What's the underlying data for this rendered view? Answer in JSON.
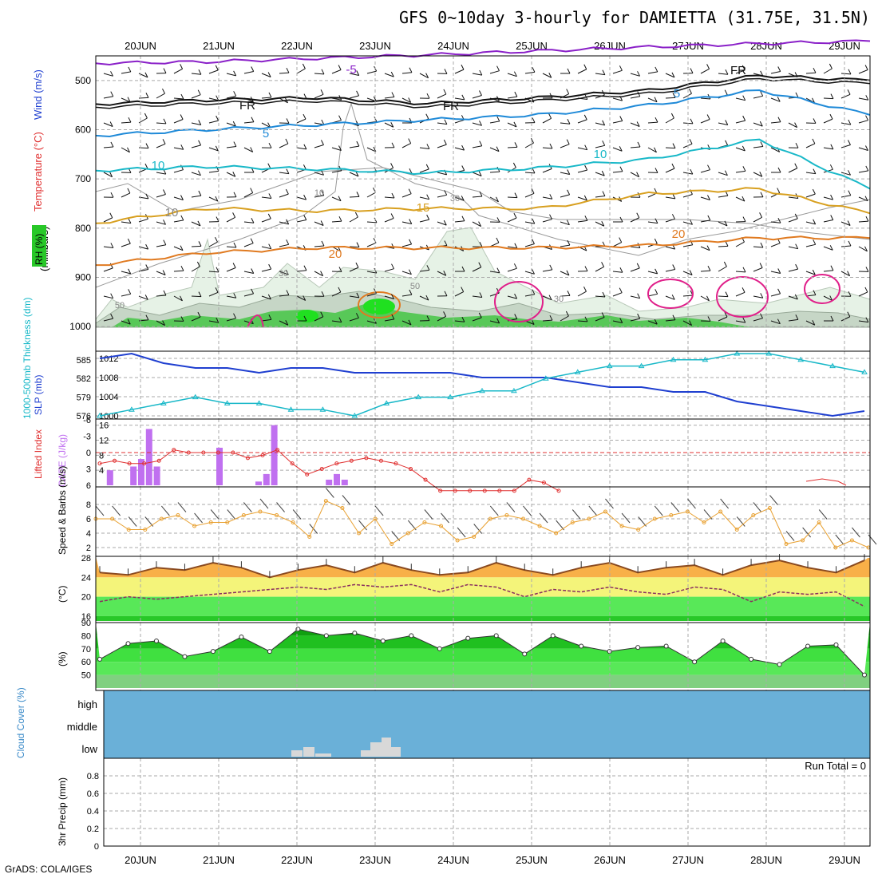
{
  "title": "GFS 0~10day 3-hourly for DAMIETTA (31.75E, 31.5N)",
  "footer": "GrADS: COLA/IGES",
  "run_total": "Run Total = 0",
  "dates": [
    "20JUN",
    "21JUN",
    "22JUN",
    "23JUN",
    "24JUN",
    "25JUN",
    "26JUN",
    "27JUN",
    "28JUN",
    "29JUN"
  ],
  "colors": {
    "slp": "#1f3fd0",
    "thickness": "#18b8c8",
    "lifted": "#e03030",
    "cape": "#c070f0",
    "wind10m": "#e8a030",
    "temp": "#8a4a20",
    "dewpt": "#8a3060",
    "rh_fill": "#28c828",
    "cloud": "#6ab0d8",
    "pink": "#e0208a",
    "orange": "#e07a20",
    "gold": "#d8a020",
    "teal": "#18b8c8",
    "blue": "#1f8ad8",
    "purple": "#8a20c8"
  },
  "chart_data": [
    {
      "panel": "pressure-cross-section",
      "type": "line",
      "labels": [
        "Temperature (°C)",
        "Wind (m/s)",
        "RH (%)",
        "(millibars)"
      ],
      "yticks": [
        500,
        600,
        700,
        800,
        900,
        1000
      ],
      "ylim": [
        450,
        1050
      ],
      "contour_labels": [
        "-5",
        "FR",
        "FR",
        "FR",
        "5",
        "5",
        "10",
        "10",
        "15",
        "20",
        "20",
        "10",
        "10",
        "30",
        "30",
        "30",
        "50",
        "50"
      ],
      "isotherms": [
        {
          "name": "-5",
          "values": [
            465,
            462,
            455,
            448,
            440,
            432,
            425,
            420
          ]
        },
        {
          "name": "FR",
          "values": [
            548,
            540,
            535,
            547,
            535,
            520,
            490,
            500
          ]
        },
        {
          "name": "5",
          "values": [
            612,
            600,
            590,
            580,
            570,
            550,
            520,
            570
          ]
        },
        {
          "name": "10",
          "values": [
            683,
            675,
            680,
            688,
            678,
            660,
            620,
            720
          ]
        },
        {
          "name": "15",
          "values": [
            790,
            760,
            765,
            760,
            760,
            730,
            720,
            770
          ]
        },
        {
          "name": "20",
          "values": [
            875,
            850,
            840,
            840,
            840,
            835,
            820,
            820
          ]
        }
      ]
    },
    {
      "panel": "slp-thickness",
      "type": "line",
      "ylabel": "SLP (mb)",
      "ylabel2": "1000-500mb Thickness (dm)",
      "yticks_slp": [
        1000,
        1004,
        1008,
        1012
      ],
      "yticks_thk": [
        576,
        579,
        582,
        585
      ],
      "slp": {
        "name": "SLP",
        "values": [
          1012,
          1013,
          1011,
          1010,
          1010,
          1009,
          1010,
          1010,
          1009,
          1009,
          1009,
          1009,
          1008,
          1008,
          1008,
          1007,
          1006,
          1006,
          1005,
          1005,
          1003,
          1002,
          1001,
          1000,
          1001
        ]
      },
      "thickness": {
        "name": "1000-500mb Thickness",
        "values": [
          576,
          577,
          578,
          579,
          578,
          578,
          577,
          577,
          576,
          578,
          579,
          579,
          580,
          580,
          582,
          583,
          584,
          584,
          585,
          585,
          586,
          586,
          585,
          584,
          583
        ]
      }
    },
    {
      "panel": "cape-lifted-index",
      "type": "bar",
      "ylabel": "CAPE (J/kg)",
      "ylabel2": "Lifted Index",
      "yticks_cape": [
        4,
        8,
        12,
        16
      ],
      "yticks_li": [
        6,
        3,
        0,
        -3,
        -6
      ],
      "cape_days": [
        0.1,
        0.4,
        0.5,
        0.6,
        0.7,
        1.5,
        2.0,
        2.1,
        2.2,
        2.9,
        3.0,
        3.1
      ],
      "cape_values": [
        4,
        5,
        7,
        15,
        5,
        10,
        1,
        3,
        16,
        1.5,
        3,
        1.5
      ],
      "lifted_index": [
        2,
        1.5,
        2,
        2,
        1.5,
        -0.5,
        0,
        0,
        0,
        0,
        1,
        0.5,
        -0.5,
        2,
        4,
        3,
        2,
        1.5,
        1,
        1.5,
        2,
        3,
        5,
        7,
        7,
        7,
        7,
        7,
        7,
        5,
        5.5,
        7
      ]
    },
    {
      "panel": "10m-wind",
      "type": "line",
      "ylabel": "Speed & Barbs (m/s)",
      "yticks": [
        2,
        4,
        6,
        8
      ],
      "values": [
        6,
        6,
        4.5,
        4.5,
        6,
        6.5,
        5,
        5.5,
        5.5,
        6.5,
        7,
        6.5,
        5.5,
        3.5,
        8.5,
        7.5,
        4,
        6,
        2.5,
        4,
        5.5,
        5,
        3,
        3.5,
        6,
        6.5,
        6,
        5,
        4,
        5.5,
        6,
        7,
        5,
        4.5,
        6,
        6.5,
        7,
        5.5,
        7,
        4.5,
        6.5,
        7.5,
        2.5,
        3,
        5.5,
        2,
        3,
        2
      ]
    },
    {
      "panel": "2m-temp-dewpt",
      "type": "area",
      "ylabel": "(°C)",
      "yticks": [
        16,
        20,
        24,
        28
      ],
      "temp": [
        25,
        24.5,
        26,
        25.5,
        27,
        26,
        24,
        25.5,
        26.5,
        25,
        27,
        25.5,
        24.5,
        25,
        27,
        25.5,
        24.5,
        26,
        27,
        25,
        26,
        26.5,
        24.5,
        26.5,
        27.5,
        26,
        25,
        27.5
      ],
      "dewpt": [
        19,
        20,
        19.5,
        20,
        20.5,
        21,
        21.5,
        22,
        21.5,
        22.5,
        22,
        22.5,
        21,
        22.5,
        22,
        20,
        21.5,
        21,
        22,
        21,
        20.5,
        22,
        21.5,
        19,
        21,
        20.5,
        21,
        18
      ]
    },
    {
      "panel": "2m-rh",
      "type": "area",
      "ylabel": "(%)",
      "yticks": [
        50,
        60,
        70,
        80,
        90
      ],
      "values": [
        62,
        74,
        76,
        64,
        68,
        79,
        68,
        85,
        80,
        82,
        76,
        80,
        70,
        78,
        80,
        66,
        80,
        72,
        68,
        71,
        72,
        60,
        76,
        62,
        58,
        72,
        73,
        50
      ]
    },
    {
      "panel": "cloud-cover",
      "type": "heatmap",
      "levels": [
        "high",
        "middle",
        "low"
      ],
      "ylabel": "Cloud Cover (%)"
    },
    {
      "panel": "precip",
      "type": "bar",
      "ylabel": "3hr Precip (mm)",
      "yticks": [
        "0",
        "0.2",
        "0.4",
        "0.6",
        "0.8"
      ],
      "values": [
        0,
        0,
        0,
        0,
        0,
        0,
        0,
        0,
        0,
        0
      ]
    }
  ]
}
